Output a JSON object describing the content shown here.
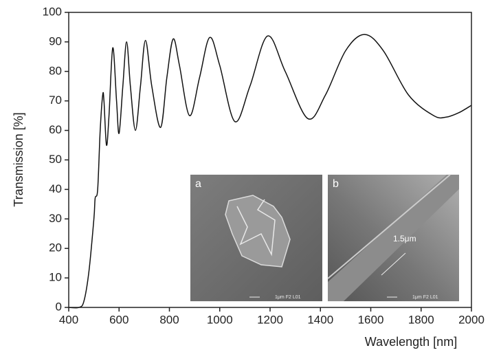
{
  "chart_data": {
    "type": "line",
    "x_label": "Wavelength [nm]",
    "y_label": "Transmission [%]",
    "x": [
      400,
      440,
      460,
      480,
      500,
      505,
      515,
      525,
      535,
      540,
      550,
      560,
      575,
      590,
      600,
      615,
      630,
      645,
      665,
      685,
      705,
      730,
      765,
      790,
      815,
      840,
      880,
      920,
      960,
      1000,
      1060,
      1120,
      1190,
      1260,
      1350,
      1420,
      1500,
      1575,
      1650,
      1750,
      1850,
      1900,
      1950,
      2000
    ],
    "values": [
      0,
      0,
      2,
      12,
      30,
      37,
      40,
      60,
      72,
      70,
      55,
      65,
      88,
      70,
      59,
      75,
      90,
      75,
      60,
      75,
      90.5,
      75,
      61,
      78,
      91,
      82,
      65,
      78,
      91.5,
      82,
      63,
      75,
      92,
      80,
      64,
      72,
      87,
      92.5,
      87,
      72,
      65,
      64.5,
      66,
      68.5
    ],
    "color": "#111111",
    "xlim": [
      400,
      2000
    ],
    "xticks": [
      400,
      600,
      800,
      1000,
      1200,
      1400,
      1600,
      1800,
      2000
    ],
    "ylim": [
      0,
      100
    ],
    "yticks": [
      0,
      10,
      20,
      30,
      40,
      50,
      60,
      70,
      80,
      90,
      100
    ],
    "insets": [
      {
        "label": "a",
        "scale_text": "1μm F2 L01"
      },
      {
        "label": "b",
        "annotation": "1.5μm",
        "scale_text": "1μm F2 L01"
      }
    ]
  }
}
